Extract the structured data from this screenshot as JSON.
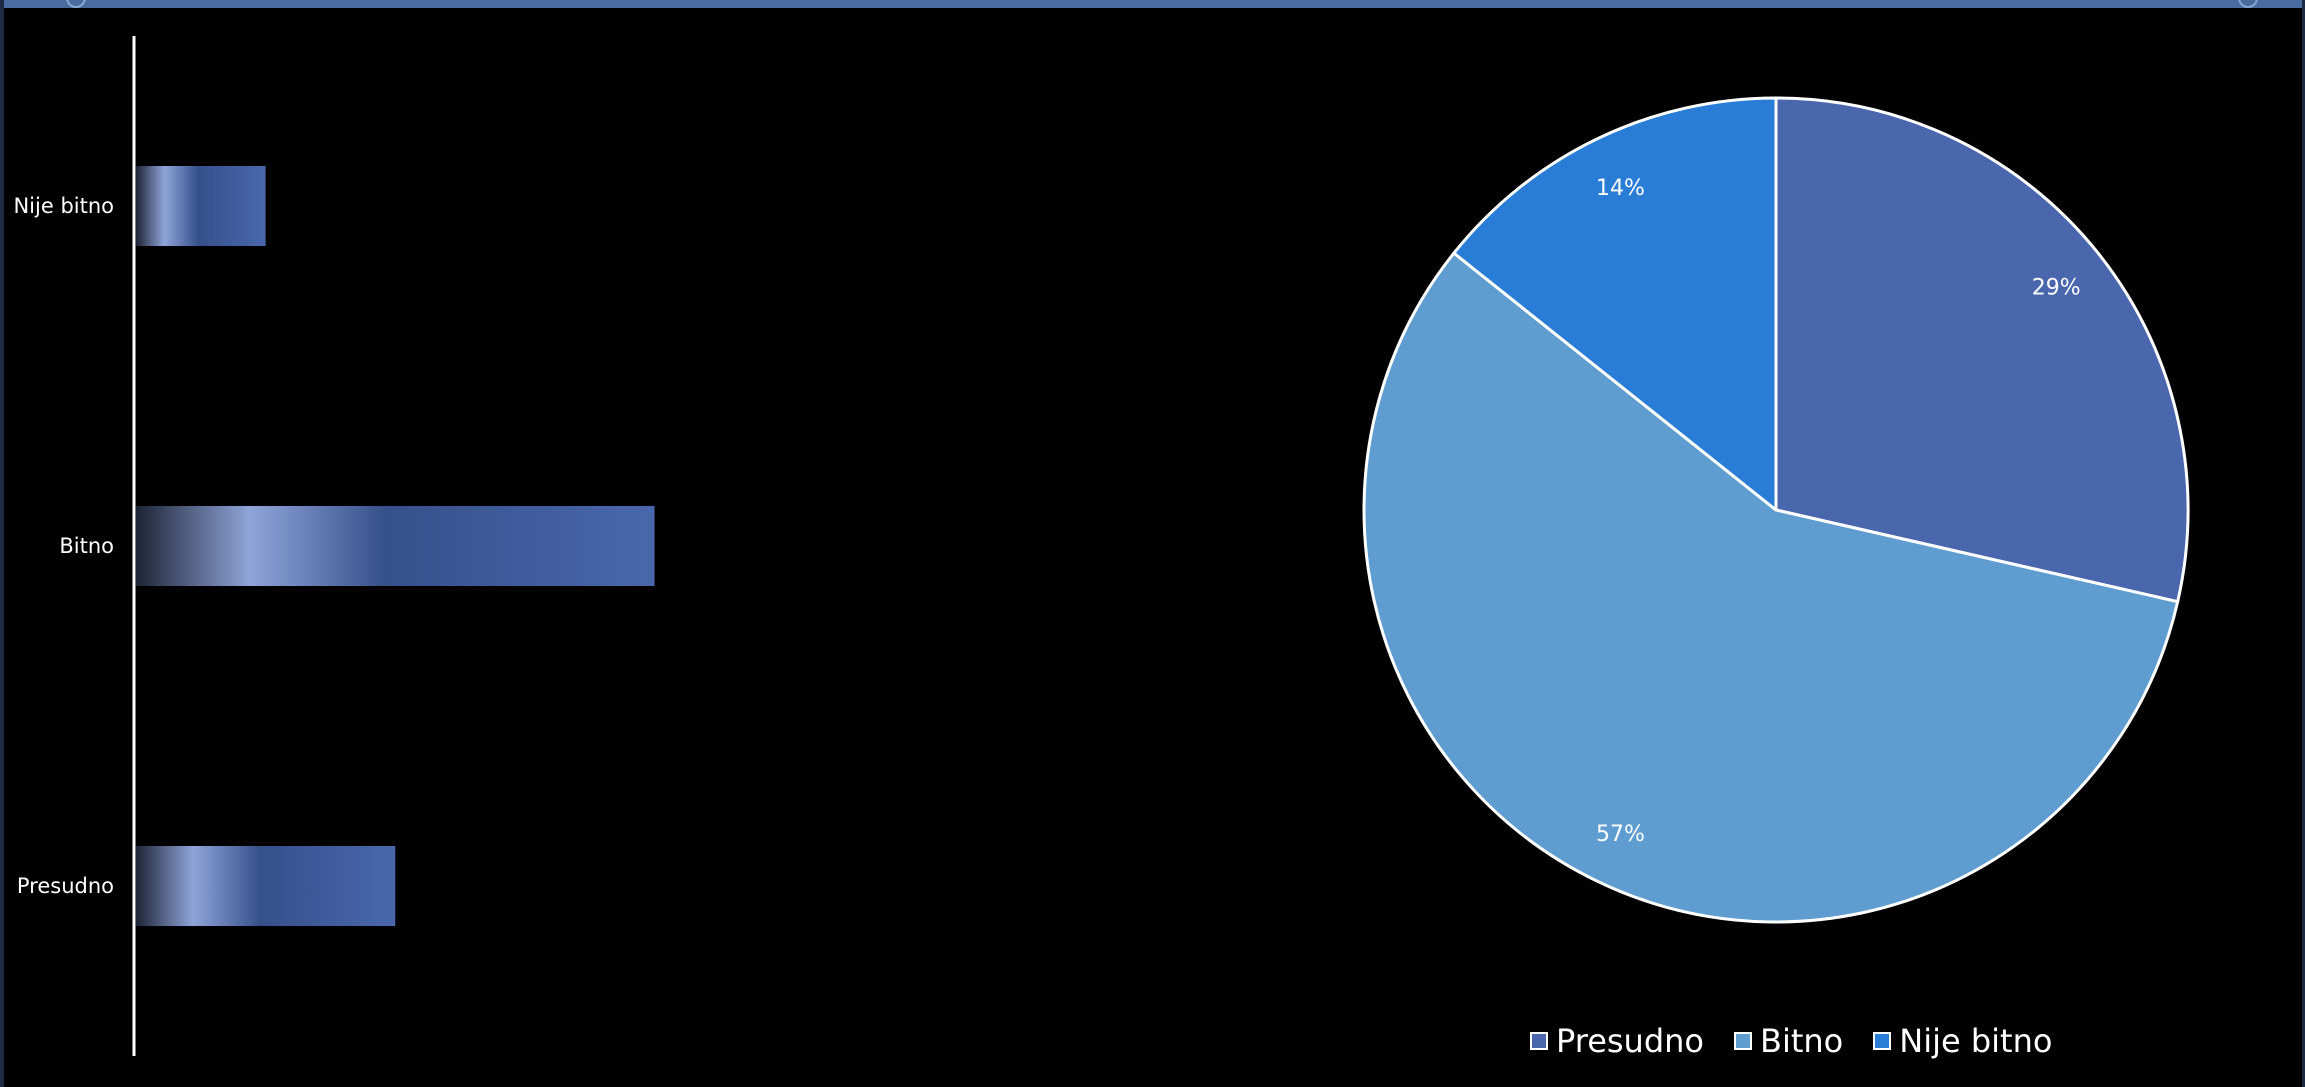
{
  "chart_data": [
    {
      "type": "bar",
      "orientation": "horizontal",
      "categories": [
        "Nije bitno",
        "Bitno",
        "Presudno"
      ],
      "values": [
        1,
        4,
        2
      ],
      "xlim": [
        0,
        5.4
      ],
      "grid": false,
      "axis_color": "#ffffff",
      "label_color": "#ffffff",
      "bar_gradient": [
        "#1e2436",
        "#8fa5d9",
        "#36508a",
        "#4a67ae"
      ]
    },
    {
      "type": "pie",
      "categories": [
        "Presudno",
        "Bitno",
        "Nije bitno"
      ],
      "values": [
        2,
        4,
        1
      ],
      "data_labels": [
        "29%",
        "57%",
        "14%"
      ],
      "colors": [
        "#4a67ae",
        "#5f9dd0",
        "#2a7dd6"
      ],
      "slice_border": "#ffffff",
      "legend_position": "bottom"
    }
  ]
}
